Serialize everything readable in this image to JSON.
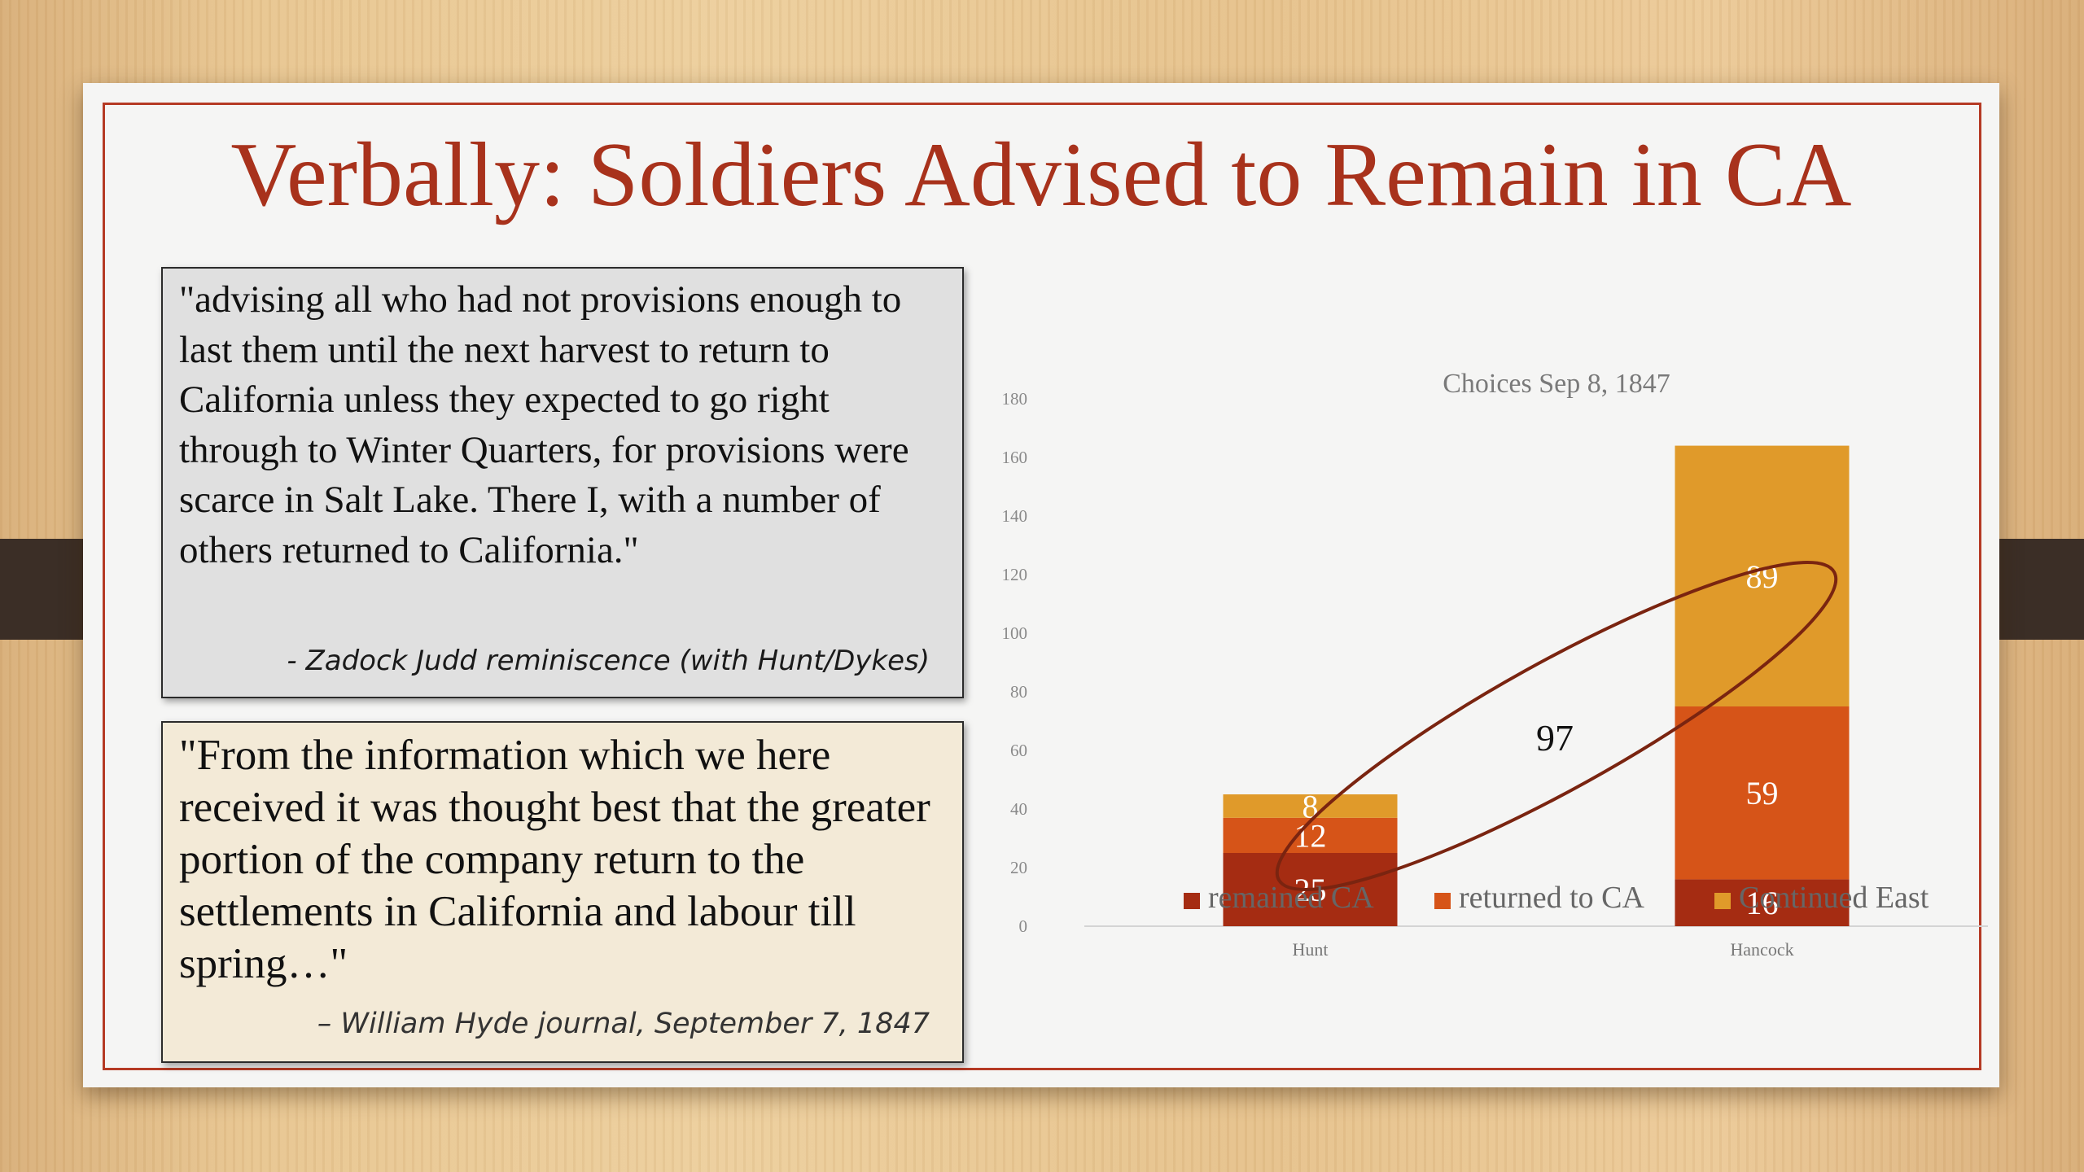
{
  "slide": {
    "title": "Verbally: Soldiers Advised to Remain in CA",
    "quote1": {
      "text": "\"advising all who had not provisions enough to last them until the next harvest to return to  California unless they expected to go right through to Winter Quarters, for provisions were scarce in Salt Lake. There I, with a number of others returned to California.\"",
      "citation": "- Zadock Judd reminiscence (with Hunt/Dykes)"
    },
    "quote2": {
      "text": "\"From the information which we here received it was thought best that the greater portion of the company return to the settlements in California and labour till spring…\"",
      "citation": "– William Hyde journal, September 7, 1847"
    }
  },
  "chart_data": {
    "type": "bar",
    "stacked": true,
    "title": "Choices Sep 8, 1847",
    "categories": [
      "Hunt",
      "Hancock"
    ],
    "series": [
      {
        "name": "remained CA",
        "values": [
          25,
          16
        ],
        "color": "#a52c12"
      },
      {
        "name": "returned to CA",
        "values": [
          12,
          59
        ],
        "color": "#d65418"
      },
      {
        "name": "Continued East",
        "values": [
          8,
          89
        ],
        "color": "#e09a2a"
      }
    ],
    "ylim": [
      0,
      180
    ],
    "yticks": [
      0,
      20,
      40,
      60,
      80,
      100,
      120,
      140,
      160,
      180
    ],
    "grid": false,
    "legend": "bottom",
    "annotation": {
      "label": "97",
      "shape": "ellipse",
      "color": "#7a2410"
    }
  }
}
